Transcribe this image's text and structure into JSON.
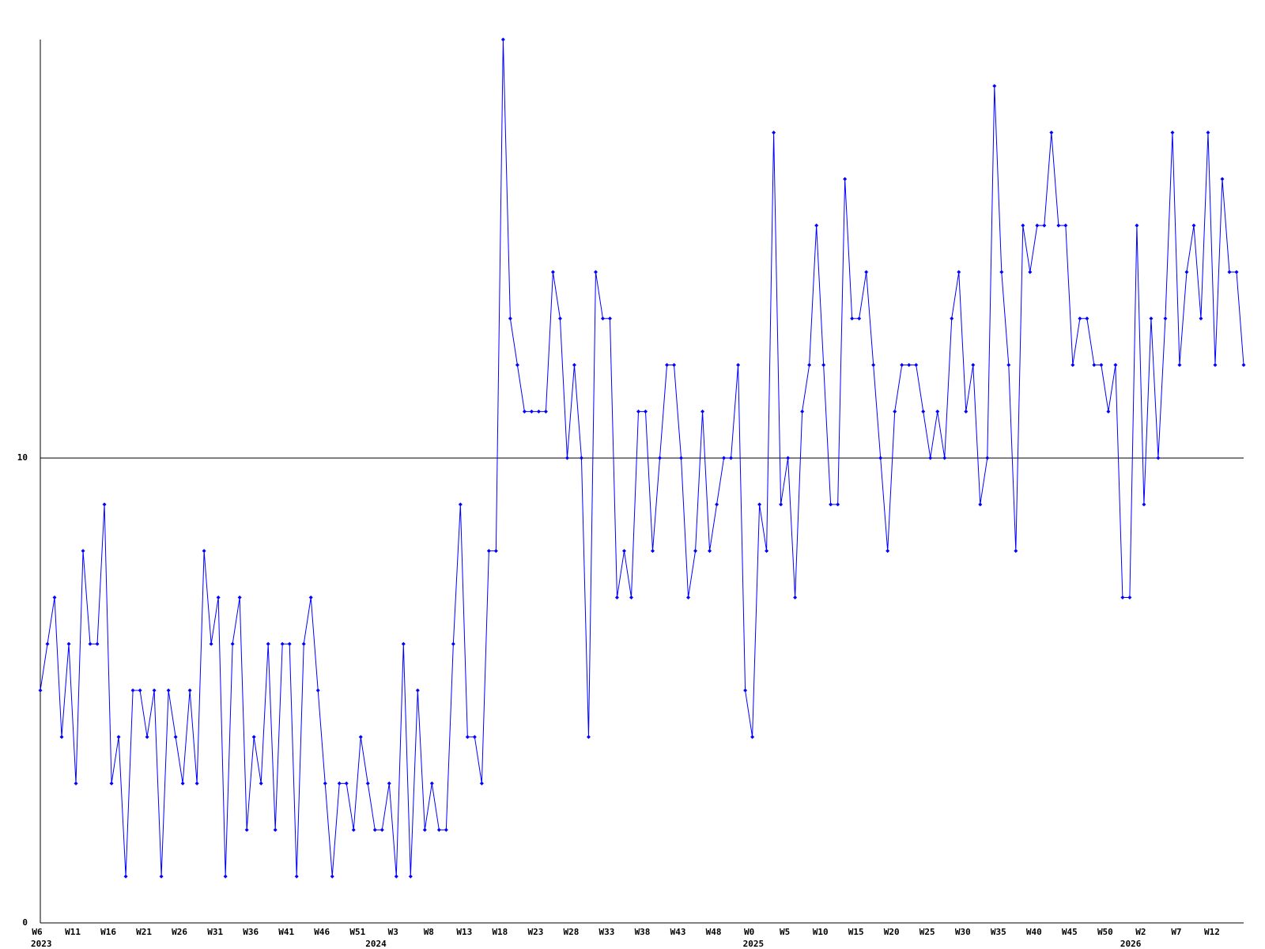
{
  "chart_data": {
    "type": "line",
    "color": "#0000ff",
    "grid": true,
    "ylim": [
      0,
      19
    ],
    "yticks": [
      0,
      10
    ],
    "categories": [
      "W6",
      null,
      null,
      null,
      null,
      "W11",
      null,
      null,
      null,
      null,
      "W16",
      null,
      null,
      null,
      null,
      "W21",
      null,
      null,
      null,
      null,
      "W26",
      null,
      null,
      null,
      null,
      "W31",
      null,
      null,
      null,
      null,
      "W36",
      null,
      null,
      null,
      null,
      "W41",
      null,
      null,
      null,
      null,
      "W46",
      null,
      null,
      null,
      null,
      "W51",
      null,
      null,
      null,
      null,
      "W3",
      null,
      null,
      null,
      null,
      "W8",
      null,
      null,
      null,
      null,
      "W13",
      null,
      null,
      null,
      null,
      "W18",
      null,
      null,
      null,
      null,
      "W23",
      null,
      null,
      null,
      null,
      "W28",
      null,
      null,
      null,
      null,
      "W33",
      null,
      null,
      null,
      null,
      "W38",
      null,
      null,
      null,
      null,
      "W43",
      null,
      null,
      null,
      null,
      "W48",
      null,
      null,
      null,
      null,
      "W0",
      null,
      null,
      null,
      null,
      "W5",
      null,
      null,
      null,
      null,
      "W10",
      null,
      null,
      null,
      null,
      "W15",
      null,
      null,
      null,
      null,
      "W20",
      null,
      null,
      null,
      null,
      "W25",
      null,
      null,
      null,
      null,
      "W30",
      null,
      null,
      null,
      null,
      "W35",
      null,
      null,
      null,
      null,
      "W40",
      null,
      null,
      null,
      null,
      "W45",
      null,
      null,
      null,
      null,
      "W50",
      null,
      null,
      null,
      null,
      "W2",
      null,
      null,
      null,
      null,
      "W7",
      null,
      null,
      null,
      null,
      "W12",
      null,
      null,
      null,
      null
    ],
    "x_sublabels": [
      "2023",
      null,
      null,
      null,
      null,
      null,
      null,
      null,
      null,
      null,
      null,
      null,
      null,
      null,
      null,
      null,
      null,
      null,
      null,
      null,
      null,
      null,
      null,
      null,
      null,
      null,
      null,
      null,
      null,
      null,
      null,
      null,
      null,
      null,
      null,
      null,
      null,
      null,
      null,
      null,
      null,
      null,
      null,
      null,
      null,
      null,
      null,
      "2024",
      null,
      null,
      null,
      null,
      null,
      null,
      null,
      null,
      null,
      null,
      null,
      null,
      null,
      null,
      null,
      null,
      null,
      null,
      null,
      null,
      null,
      null,
      null,
      null,
      null,
      null,
      null,
      null,
      null,
      null,
      null,
      null,
      null,
      null,
      null,
      null,
      null,
      null,
      null,
      null,
      null,
      null,
      null,
      null,
      null,
      null,
      null,
      null,
      null,
      null,
      null,
      null,
      "2025",
      null,
      null,
      null,
      null,
      null,
      null,
      null,
      null,
      null,
      null,
      null,
      null,
      null,
      null,
      null,
      null,
      null,
      null,
      null,
      null,
      null,
      null,
      null,
      null,
      null,
      null,
      null,
      null,
      null,
      null,
      null,
      null,
      null,
      null,
      null,
      null,
      null,
      null,
      null,
      null,
      null,
      null,
      null,
      null,
      null,
      null,
      null,
      null,
      null,
      null,
      null,
      null,
      "2026",
      null,
      null,
      null,
      null,
      null,
      null,
      null,
      null,
      null,
      null,
      null,
      null,
      null,
      null,
      null,
      null
    ],
    "values": [
      5,
      6,
      7,
      4,
      6,
      3,
      8,
      6,
      6,
      9,
      3,
      4,
      1,
      5,
      5,
      4,
      5,
      1,
      5,
      4,
      3,
      5,
      3,
      8,
      6,
      7,
      1,
      6,
      7,
      2,
      4,
      3,
      6,
      2,
      6,
      6,
      1,
      6,
      7,
      5,
      3,
      1,
      3,
      3,
      2,
      4,
      3,
      2,
      2,
      3,
      1,
      6,
      1,
      5,
      2,
      3,
      2,
      2,
      6,
      9,
      4,
      4,
      3,
      8,
      8,
      19,
      13,
      12,
      11,
      11,
      11,
      11,
      14,
      13,
      10,
      12,
      10,
      4,
      14,
      13,
      13,
      7,
      8,
      7,
      11,
      11,
      8,
      10,
      12,
      12,
      10,
      7,
      8,
      11,
      8,
      9,
      10,
      10,
      12,
      5,
      4,
      9,
      8,
      17,
      9,
      10,
      7,
      11,
      12,
      15,
      12,
      9,
      9,
      16,
      13,
      13,
      14,
      12,
      10,
      8,
      11,
      12,
      12,
      12,
      11,
      10,
      11,
      10,
      13,
      14,
      11,
      12,
      9,
      10,
      18,
      14,
      12,
      8,
      15,
      14,
      15,
      15,
      17,
      15,
      15,
      12,
      13,
      13,
      12,
      12,
      11,
      12,
      7,
      7,
      15,
      9,
      13,
      10,
      13,
      17,
      12,
      14,
      15,
      13,
      17,
      12,
      16,
      14,
      14,
      12
    ]
  }
}
